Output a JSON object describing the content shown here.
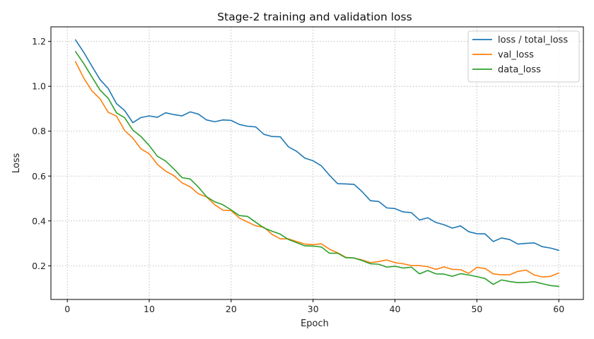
{
  "chart_data": {
    "type": "line",
    "title": "Stage-2 training and validation loss",
    "xlabel": "Epoch",
    "ylabel": "Loss",
    "xlim": [
      -2,
      63
    ],
    "ylim": [
      0.05,
      1.265
    ],
    "xticks": [
      0,
      10,
      20,
      30,
      40,
      50,
      60
    ],
    "xtick_labels": [
      "0",
      "10",
      "20",
      "30",
      "40",
      "50",
      "60"
    ],
    "yticks": [
      0.2,
      0.4,
      0.6,
      0.8,
      1.0,
      1.2
    ],
    "ytick_labels": [
      "0.2",
      "0.4",
      "0.6",
      "0.8",
      "1.0",
      "1.2"
    ],
    "grid": true,
    "legend_position": "top-right",
    "x": [
      1,
      2,
      3,
      4,
      5,
      6,
      7,
      8,
      9,
      10,
      11,
      12,
      13,
      14,
      15,
      16,
      17,
      18,
      19,
      20,
      21,
      22,
      23,
      24,
      25,
      26,
      27,
      28,
      29,
      30,
      31,
      32,
      33,
      34,
      35,
      36,
      37,
      38,
      39,
      40,
      41,
      42,
      43,
      44,
      45,
      46,
      47,
      48,
      49,
      50,
      51,
      52,
      53,
      54,
      55,
      56,
      57,
      58,
      59,
      60
    ],
    "series": [
      {
        "name": "loss / total_loss",
        "color": "#1f77b4",
        "values": [
          1.207,
          1.152,
          1.09,
          1.03,
          0.99,
          0.923,
          0.892,
          0.838,
          0.861,
          0.868,
          0.862,
          0.882,
          0.874,
          0.868,
          0.886,
          0.876,
          0.85,
          0.842,
          0.85,
          0.848,
          0.83,
          0.822,
          0.819,
          0.786,
          0.776,
          0.775,
          0.73,
          0.71,
          0.68,
          0.668,
          0.646,
          0.604,
          0.566,
          0.565,
          0.563,
          0.53,
          0.49,
          0.487,
          0.458,
          0.455,
          0.44,
          0.437,
          0.404,
          0.414,
          0.393,
          0.383,
          0.368,
          0.378,
          0.352,
          0.343,
          0.342,
          0.308,
          0.324,
          0.317,
          0.297,
          0.3,
          0.302,
          0.285,
          0.279,
          0.269
        ]
      },
      {
        "name": "val_loss",
        "color": "#ff7f0e",
        "values": [
          1.11,
          1.037,
          0.98,
          0.944,
          0.884,
          0.867,
          0.803,
          0.769,
          0.721,
          0.699,
          0.652,
          0.622,
          0.602,
          0.57,
          0.552,
          0.521,
          0.507,
          0.472,
          0.448,
          0.446,
          0.413,
          0.395,
          0.378,
          0.372,
          0.34,
          0.32,
          0.32,
          0.308,
          0.297,
          0.294,
          0.298,
          0.274,
          0.258,
          0.238,
          0.234,
          0.226,
          0.214,
          0.219,
          0.226,
          0.214,
          0.209,
          0.201,
          0.201,
          0.196,
          0.184,
          0.195,
          0.184,
          0.183,
          0.166,
          0.193,
          0.188,
          0.164,
          0.16,
          0.16,
          0.175,
          0.181,
          0.159,
          0.15,
          0.153,
          0.168
        ]
      },
      {
        "name": "data_loss",
        "color": "#2ca02c",
        "values": [
          1.155,
          1.102,
          1.042,
          0.983,
          0.946,
          0.882,
          0.86,
          0.805,
          0.776,
          0.736,
          0.688,
          0.667,
          0.632,
          0.593,
          0.587,
          0.551,
          0.508,
          0.485,
          0.472,
          0.449,
          0.424,
          0.42,
          0.394,
          0.369,
          0.354,
          0.341,
          0.317,
          0.303,
          0.289,
          0.288,
          0.284,
          0.256,
          0.256,
          0.236,
          0.235,
          0.223,
          0.209,
          0.207,
          0.194,
          0.198,
          0.19,
          0.194,
          0.164,
          0.179,
          0.164,
          0.163,
          0.153,
          0.165,
          0.159,
          0.152,
          0.143,
          0.117,
          0.137,
          0.13,
          0.125,
          0.126,
          0.129,
          0.12,
          0.112,
          0.108
        ]
      }
    ]
  }
}
